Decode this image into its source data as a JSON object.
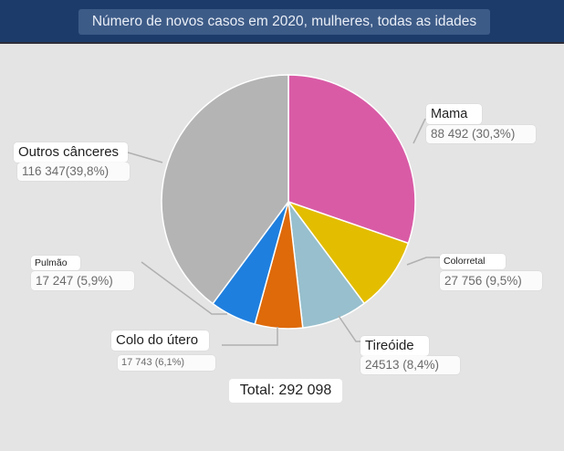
{
  "header": {
    "title": "Número de novos casos em 2020, mulheres, todas as idades"
  },
  "total_label": "Total: 292 098",
  "chart_data": {
    "type": "pie",
    "title": "Número de novos casos em 2020, mulheres, todas as idades",
    "total": 292098,
    "slices": [
      {
        "label": "Mama",
        "value": 88492,
        "value_label": "88 492 (30,3%)",
        "percent": 30.3,
        "color": "#d95ba6"
      },
      {
        "label": "Colorretal",
        "value": 27756,
        "value_label": "27 756 (9,5%)",
        "percent": 9.5,
        "color": "#e3bd00"
      },
      {
        "label": "Tireóide",
        "value": 24513,
        "value_label": "24513 (8,4%)",
        "percent": 8.4,
        "color": "#97bfcd"
      },
      {
        "label": "Colo do útero",
        "value": 17743,
        "value_label": "17 743 (6,1%)",
        "percent": 6.1,
        "color": "#de6a0a"
      },
      {
        "label": "Pulmão",
        "value": 17247,
        "value_label": "17 247 (5,9%)",
        "percent": 5.9,
        "color": "#1f7fde"
      },
      {
        "label": "Outros cânceres",
        "value": 116347,
        "value_label": "116 347(39,8%)",
        "percent": 39.8,
        "color": "#b4b4b4"
      }
    ]
  }
}
